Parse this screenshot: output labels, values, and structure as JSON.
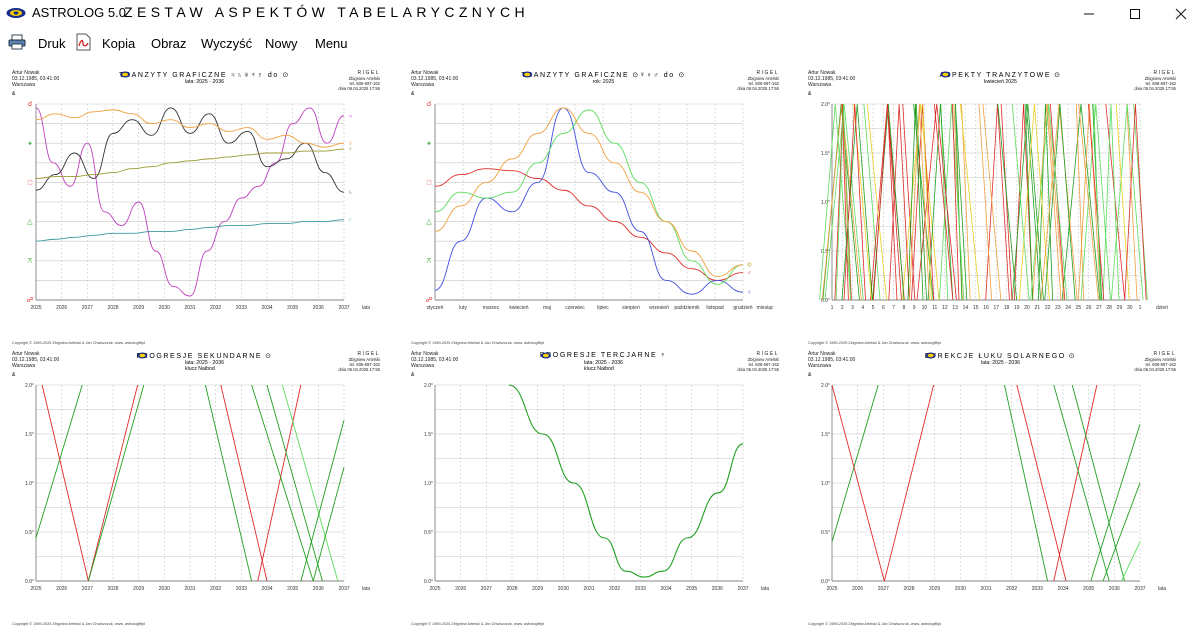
{
  "app": {
    "title": "ASTROLOG 5.0",
    "window_title": "ZESTAW ASPEKTÓW TABELARYCZNYCH",
    "window_controls": [
      "minimize",
      "maximize",
      "close"
    ]
  },
  "menu": [
    {
      "label": "Druk",
      "icon": "printer-icon"
    },
    {
      "label": "Kopia",
      "icon": "pdf-icon"
    },
    {
      "label": "Obraz"
    },
    {
      "label": "Wyczyść"
    },
    {
      "label": "Nowy"
    },
    {
      "label": "Menu"
    }
  ],
  "common": {
    "person": "Artur Nowak",
    "birth": "03.12.1985, 03:41:00",
    "place": "Warszawa",
    "rigel": "RIGEL",
    "author": "Zbigniew Artelski",
    "phone": "tel. 606-697-162",
    "date": "dnia 06.04.2025 17:55",
    "copyright": "Copyright © 1989-2025 Zbigniew Artelski & Jan Chwiszczuk, www. astrologfiltpl",
    "amp": "&"
  },
  "colors": {
    "red": "#e02a2a",
    "green": "#20a020",
    "lightgreen": "#5ddc5d",
    "orange": "#f0a040",
    "yellow": "#e8d020",
    "purple": "#c040c0",
    "blue": "#4050e0",
    "black": "#333333",
    "olive": "#9a9a30",
    "teal": "#3a9aa0",
    "grid": "#c8c8c8"
  },
  "panels": [
    {
      "id": "tranzyty-graficzne-1",
      "title": "TRANZYTY GRAFICZNE",
      "title_suffix": "♃♄♅♆♇ do ⊙",
      "subtitle": "lata: 2025 - 2036",
      "chart_data": {
        "type": "line",
        "x_labels": [
          "2025",
          "2026",
          "2027",
          "2028",
          "2029",
          "2030",
          "2031",
          "2032",
          "2033",
          "2034",
          "2035",
          "2036",
          "2037"
        ],
        "x_unit": "lata",
        "y_symbols": [
          {
            "g": "☌",
            "c": "#e02a2a"
          },
          {
            "g": "⚹",
            "c": "#20a020"
          },
          {
            "g": "□",
            "c": "#e02a2a"
          },
          {
            "g": "△",
            "c": "#20a020"
          },
          {
            "g": "⚻",
            "c": "#20a020"
          },
          {
            "g": "☍",
            "c": "#e02a2a"
          }
        ],
        "series": [
          {
            "glyph": "♃",
            "color": "#c040c0",
            "ys": [
              0.02,
              0.3,
              0.42,
              0.2,
              0.55,
              0.62,
              0.5,
              0.75,
              0.93,
              0.98,
              0.75,
              0.6,
              0.48,
              0.42,
              0.3,
              0.1,
              0.02,
              0.2,
              0.06
            ]
          },
          {
            "glyph": "♄",
            "color": "#333333",
            "ys": [
              0.44,
              0.36,
              0.25,
              0.38,
              0.15,
              0.08,
              0.16,
              0.02,
              0.15,
              0.05,
              0.2,
              0.14,
              0.32,
              0.28,
              0.2,
              0.35,
              0.45
            ]
          },
          {
            "glyph": "♅",
            "color": "#f0a040",
            "ys": [
              0.08,
              0.05,
              0.07,
              0.04,
              0.03,
              0.05,
              0.1,
              0.08,
              0.12,
              0.1,
              0.14,
              0.12,
              0.18,
              0.16,
              0.2,
              0.22,
              0.2
            ]
          },
          {
            "glyph": "♆",
            "color": "#9a9a30",
            "ys": [
              0.38,
              0.37,
              0.37,
              0.36,
              0.35,
              0.33,
              0.32,
              0.3,
              0.29,
              0.28,
              0.27,
              0.26,
              0.25,
              0.25,
              0.24,
              0.24,
              0.23
            ]
          },
          {
            "glyph": "♇",
            "color": "#3a9aa0",
            "ys": [
              0.7,
              0.69,
              0.68,
              0.67,
              0.66,
              0.66,
              0.65,
              0.65,
              0.64,
              0.63,
              0.62,
              0.62,
              0.61,
              0.61,
              0.6,
              0.6,
              0.59
            ]
          }
        ]
      }
    },
    {
      "id": "tranzyty-graficzne-2",
      "title": "TRANZYTY GRAFICZNE",
      "title_suffix": "⊙☿♀♂ do ⊙",
      "subtitle": "rok: 2025",
      "chart_data": {
        "type": "line",
        "x_labels": [
          "styczeń",
          "luty",
          "marzec",
          "kwiecień",
          "maj",
          "czerwiec",
          "lipiec",
          "sierpień",
          "wrzesień",
          "październik",
          "listopad",
          "grudzień"
        ],
        "x_unit": "miesiąc",
        "y_symbols": [
          {
            "g": "☌",
            "c": "#e02a2a"
          },
          {
            "g": "⚹",
            "c": "#20a020"
          },
          {
            "g": "□",
            "c": "#e02a2a"
          },
          {
            "g": "△",
            "c": "#20a020"
          },
          {
            "g": "⚻",
            "c": "#20a020"
          },
          {
            "g": "☍",
            "c": "#e02a2a"
          }
        ],
        "series": [
          {
            "glyph": "♂",
            "color": "#e02a2a",
            "ys": [
              0.42,
              0.36,
              0.33,
              0.34,
              0.38,
              0.44,
              0.52,
              0.6,
              0.68,
              0.76,
              0.84,
              0.9,
              0.86
            ]
          },
          {
            "glyph": "♀",
            "color": "#4050e0",
            "ys": [
              0.95,
              0.7,
              0.48,
              0.55,
              0.4,
              0.02,
              0.35,
              0.45,
              0.65,
              0.9,
              0.97,
              0.9,
              0.96
            ]
          },
          {
            "glyph": "☿",
            "color": "#5ddc5d",
            "ys": [
              0.55,
              0.45,
              0.48,
              0.45,
              0.3,
              0.15,
              0.03,
              0.2,
              0.4,
              0.6,
              0.8,
              0.92,
              0.82
            ]
          },
          {
            "glyph": "⊙",
            "color": "#f0a040",
            "ys": [
              0.65,
              0.52,
              0.4,
              0.28,
              0.15,
              0.02,
              0.15,
              0.3,
              0.45,
              0.6,
              0.75,
              0.88,
              0.82
            ]
          }
        ]
      }
    },
    {
      "id": "aspekty-tranzytowe",
      "title": "ASPEKTY TRANZYTOWE",
      "title_suffix": "⊙",
      "subtitle": "kwiecień 2025",
      "chart_data": {
        "type": "line",
        "x_labels": [
          "1",
          "2",
          "3",
          "4",
          "5",
          "6",
          "7",
          "8",
          "9",
          "10",
          "11",
          "12",
          "13",
          "14",
          "15",
          "16",
          "17",
          "18",
          "19",
          "20",
          "21",
          "22",
          "23",
          "24",
          "25",
          "26",
          "27",
          "28",
          "29",
          "30",
          "1"
        ],
        "x_unit": "dzień",
        "y_labels": [
          "2.0°",
          "1.5°",
          "1.0°",
          "0.5°",
          "0.0°"
        ]
      }
    },
    {
      "id": "progresje-sekundarne",
      "title": "PROGRESJE SEKUNDARNE",
      "title_suffix": "⊙",
      "subtitle": "lata: 2025 - 2036",
      "subtitle2": "klucz Naibod",
      "chart_data": {
        "type": "line",
        "x_labels": [
          "2025",
          "2026",
          "2027",
          "2028",
          "2029",
          "2030",
          "2031",
          "2032",
          "2033",
          "2034",
          "2035",
          "2036",
          "2037"
        ],
        "x_unit": "lata",
        "y_labels": [
          "2.0°",
          "1.5°",
          "1.0°",
          "0.5°",
          "0.0°"
        ]
      }
    },
    {
      "id": "progresje-tercjarne",
      "title": "PROGRESJE TERCJARNE",
      "title_suffix": "♆",
      "subtitle": "lata: 2025 - 2036",
      "subtitle2": "klucz Naibod",
      "chart_data": {
        "type": "line",
        "x_labels": [
          "2025",
          "2026",
          "2027",
          "2028",
          "2029",
          "2030",
          "2031",
          "2032",
          "2033",
          "2034",
          "2035",
          "2036",
          "2037"
        ],
        "x_unit": "lata",
        "y_labels": [
          "2.0°",
          "1.5°",
          "1.0°",
          "0.5°",
          "0.0°"
        ]
      }
    },
    {
      "id": "dyrekcje-luku-solarnego",
      "title": "DYREKCJE ŁUKU SOLARNEGO",
      "title_suffix": "⊙",
      "subtitle": "lata: 2025 - 2036",
      "chart_data": {
        "type": "line",
        "x_labels": [
          "2025",
          "2026",
          "2027",
          "2028",
          "2029",
          "2030",
          "2031",
          "2032",
          "2033",
          "2034",
          "2035",
          "2036",
          "2037"
        ],
        "x_unit": "lata",
        "y_labels": [
          "2.0°",
          "1.5°",
          "1.0°",
          "0.5°",
          "0.0°"
        ]
      }
    }
  ]
}
